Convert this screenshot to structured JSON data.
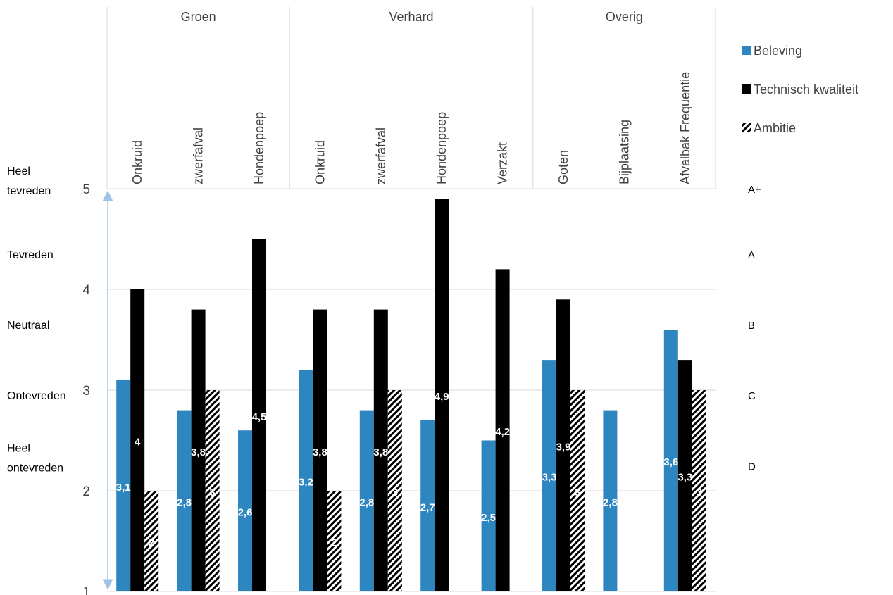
{
  "chart_data": {
    "type": "bar",
    "groups": [
      {
        "name": "Groen",
        "span": 3
      },
      {
        "name": "Verhard",
        "span": 4
      },
      {
        "name": "Overig",
        "span": 3
      }
    ],
    "categories": [
      "Onkruid",
      "zwerfafval",
      "Hondenpoep",
      "Onkruid",
      "zwerfafval",
      "Hondenpoep",
      "Verzakt",
      "Goten",
      "Bijplaatsing",
      "Afvalbak Frequentie"
    ],
    "series": [
      {
        "name": "Beleving",
        "color": "#2E86C1",
        "pattern": "solid",
        "values": [
          3.1,
          2.8,
          2.6,
          3.2,
          2.8,
          2.7,
          2.5,
          3.3,
          2.8,
          3.6
        ],
        "labels": [
          "3,1",
          "2,8",
          "2,6",
          "3,2",
          "2,8",
          "2,7",
          "2,5",
          "3,3",
          "2,8",
          "3,6"
        ]
      },
      {
        "name": "Technisch kwaliteit",
        "color": "#000000",
        "pattern": "solid",
        "values": [
          4,
          3.8,
          4.5,
          3.8,
          3.8,
          4.9,
          4.2,
          3.9,
          null,
          3.3
        ],
        "labels": [
          "4",
          "3,8",
          "4,5",
          "3,8",
          "3,8",
          "4,9",
          "4,2",
          "3,9",
          "",
          "3,3"
        ]
      },
      {
        "name": "Ambitie",
        "color": "#000000",
        "pattern": "hatch",
        "values": [
          2,
          3,
          null,
          2,
          3,
          null,
          null,
          3,
          null,
          3
        ],
        "labels": [
          "2",
          "3",
          "",
          "2",
          "3",
          "",
          "",
          "3",
          "",
          "3"
        ]
      }
    ],
    "ylim": [
      1,
      5
    ],
    "yticks": [
      "1",
      "2",
      "3",
      "4",
      "5"
    ],
    "grid": true,
    "legend_position": "right",
    "satisfaction_labels": [
      {
        "line1": "Heel",
        "line2": "tevreden",
        "at": 5
      },
      {
        "line1": "Tevreden",
        "line2": "",
        "at": 4.35
      },
      {
        "line1": "Neutraal",
        "line2": "",
        "at": 3.65
      },
      {
        "line1": "Ontevreden",
        "line2": "",
        "at": 2.95
      },
      {
        "line1": "Heel",
        "line2": "ontevreden",
        "at": 2.25
      }
    ],
    "grade_labels": [
      {
        "label": "A+",
        "at": 5
      },
      {
        "label": "A",
        "at": 4.35
      },
      {
        "label": "B",
        "at": 3.65
      },
      {
        "label": "C",
        "at": 2.95
      },
      {
        "label": "D",
        "at": 2.25
      }
    ],
    "arrow_color": "#9DC3E6"
  }
}
